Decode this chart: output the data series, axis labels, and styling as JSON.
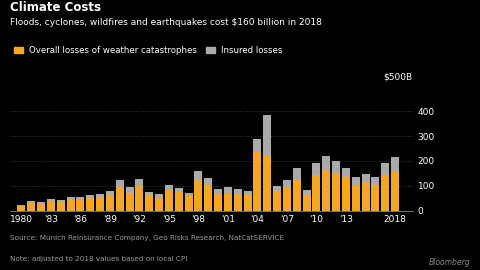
{
  "title": "Climate Costs",
  "subtitle": "Floods, cyclones, wildfires and earthquakes cost $160 billion in 2018",
  "source": "Source: Munich Reinsurance Company, Geo Risks Research, NatCatSERVICE",
  "note": "Note: adjusted to 2018 values based on local CPI",
  "ylabel": "$500B",
  "legend_overall": "Overall losses of weather catastrophes",
  "legend_insured": "Insured losses",
  "years": [
    1980,
    1981,
    1982,
    1983,
    1984,
    1985,
    1986,
    1987,
    1988,
    1989,
    1990,
    1991,
    1992,
    1993,
    1994,
    1995,
    1996,
    1997,
    1998,
    1999,
    2000,
    2001,
    2002,
    2003,
    2004,
    2005,
    2006,
    2007,
    2008,
    2009,
    2010,
    2011,
    2012,
    2013,
    2014,
    2015,
    2016,
    2017,
    2018
  ],
  "overall_losses": [
    18,
    32,
    28,
    38,
    33,
    42,
    43,
    52,
    53,
    62,
    95,
    72,
    100,
    62,
    52,
    82,
    75,
    58,
    125,
    105,
    68,
    72,
    68,
    65,
    235,
    220,
    78,
    95,
    125,
    62,
    145,
    165,
    150,
    135,
    105,
    115,
    105,
    145,
    155
  ],
  "insured_losses": [
    4,
    8,
    7,
    10,
    8,
    12,
    10,
    12,
    15,
    18,
    30,
    22,
    28,
    12,
    15,
    22,
    17,
    12,
    35,
    28,
    17,
    22,
    17,
    15,
    55,
    165,
    22,
    30,
    45,
    22,
    45,
    55,
    50,
    35,
    30,
    33,
    30,
    45,
    60
  ],
  "overall_color": "#f5a623",
  "insured_color": "#aaaaaa",
  "background_color": "#000000",
  "text_color": "#ffffff",
  "yticks": [
    0,
    100,
    200,
    300,
    400
  ],
  "xtick_labels": [
    "1980",
    "'83",
    "'86",
    "'89",
    "'92",
    "'95",
    "'98",
    "'01",
    "'04",
    "'07",
    "'10",
    "'13",
    "2018"
  ],
  "xtick_positions": [
    1980,
    1983,
    1986,
    1989,
    1992,
    1995,
    1998,
    2001,
    2004,
    2007,
    2010,
    2013,
    2018
  ]
}
